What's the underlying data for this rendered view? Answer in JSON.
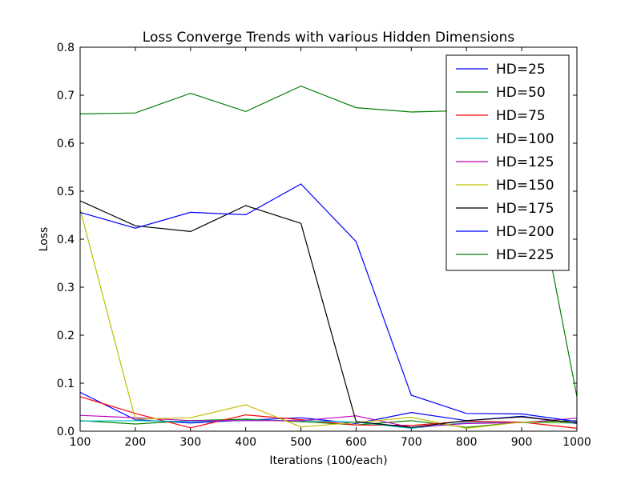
{
  "chart_data": {
    "type": "line",
    "title": "Loss Converge Trends with various Hidden Dimensions",
    "xlabel": "Iterations (100/each)",
    "ylabel": "Loss",
    "xlim": [
      100,
      1000
    ],
    "ylim": [
      0.0,
      0.8
    ],
    "xticks": [
      "100",
      "200",
      "300",
      "400",
      "500",
      "600",
      "700",
      "800",
      "900",
      "1000"
    ],
    "yticks": [
      "0.0",
      "0.1",
      "0.2",
      "0.3",
      "0.4",
      "0.5",
      "0.6",
      "0.7",
      "0.8"
    ],
    "x": [
      100,
      200,
      300,
      400,
      500,
      600,
      700,
      800,
      900,
      1000
    ],
    "grid": false,
    "legend_position": "top-right",
    "series": [
      {
        "name": "HD=25",
        "color": "#0000ff",
        "values": [
          0.081,
          0.024,
          0.017,
          0.023,
          0.028,
          0.016,
          0.039,
          0.022,
          0.031,
          0.016
        ]
      },
      {
        "name": "HD=50",
        "color": "#008000",
        "values": [
          0.022,
          0.015,
          0.022,
          0.025,
          0.02,
          0.013,
          0.022,
          0.008,
          0.019,
          0.022
        ]
      },
      {
        "name": "HD=75",
        "color": "#ff0000",
        "values": [
          0.072,
          0.037,
          0.007,
          0.034,
          0.024,
          0.013,
          0.012,
          0.021,
          0.019,
          0.006
        ]
      },
      {
        "name": "HD=100",
        "color": "#00bfbf",
        "values": [
          0.021,
          0.022,
          0.02,
          0.023,
          0.022,
          0.019,
          0.006,
          0.018,
          0.018,
          0.017
        ]
      },
      {
        "name": "HD=125",
        "color": "#bf00bf",
        "values": [
          0.033,
          0.028,
          0.022,
          0.022,
          0.022,
          0.032,
          0.008,
          0.016,
          0.018,
          0.027
        ]
      },
      {
        "name": "HD=150",
        "color": "#bfbf00",
        "values": [
          0.462,
          0.025,
          0.028,
          0.055,
          0.009,
          0.018,
          0.029,
          0.006,
          0.019,
          0.018
        ]
      },
      {
        "name": "HD=175",
        "color": "#000000",
        "values": [
          0.48,
          0.428,
          0.416,
          0.47,
          0.433,
          0.02,
          0.008,
          0.022,
          0.03,
          0.017
        ]
      },
      {
        "name": "HD=200",
        "color": "#0000ff",
        "values": [
          0.456,
          0.423,
          0.456,
          0.451,
          0.515,
          0.395,
          0.075,
          0.037,
          0.036,
          0.02
        ]
      },
      {
        "name": "HD=225",
        "color": "#008000",
        "values": [
          0.661,
          0.663,
          0.704,
          0.666,
          0.719,
          0.674,
          0.665,
          0.668,
          0.668,
          0.072
        ]
      }
    ]
  }
}
